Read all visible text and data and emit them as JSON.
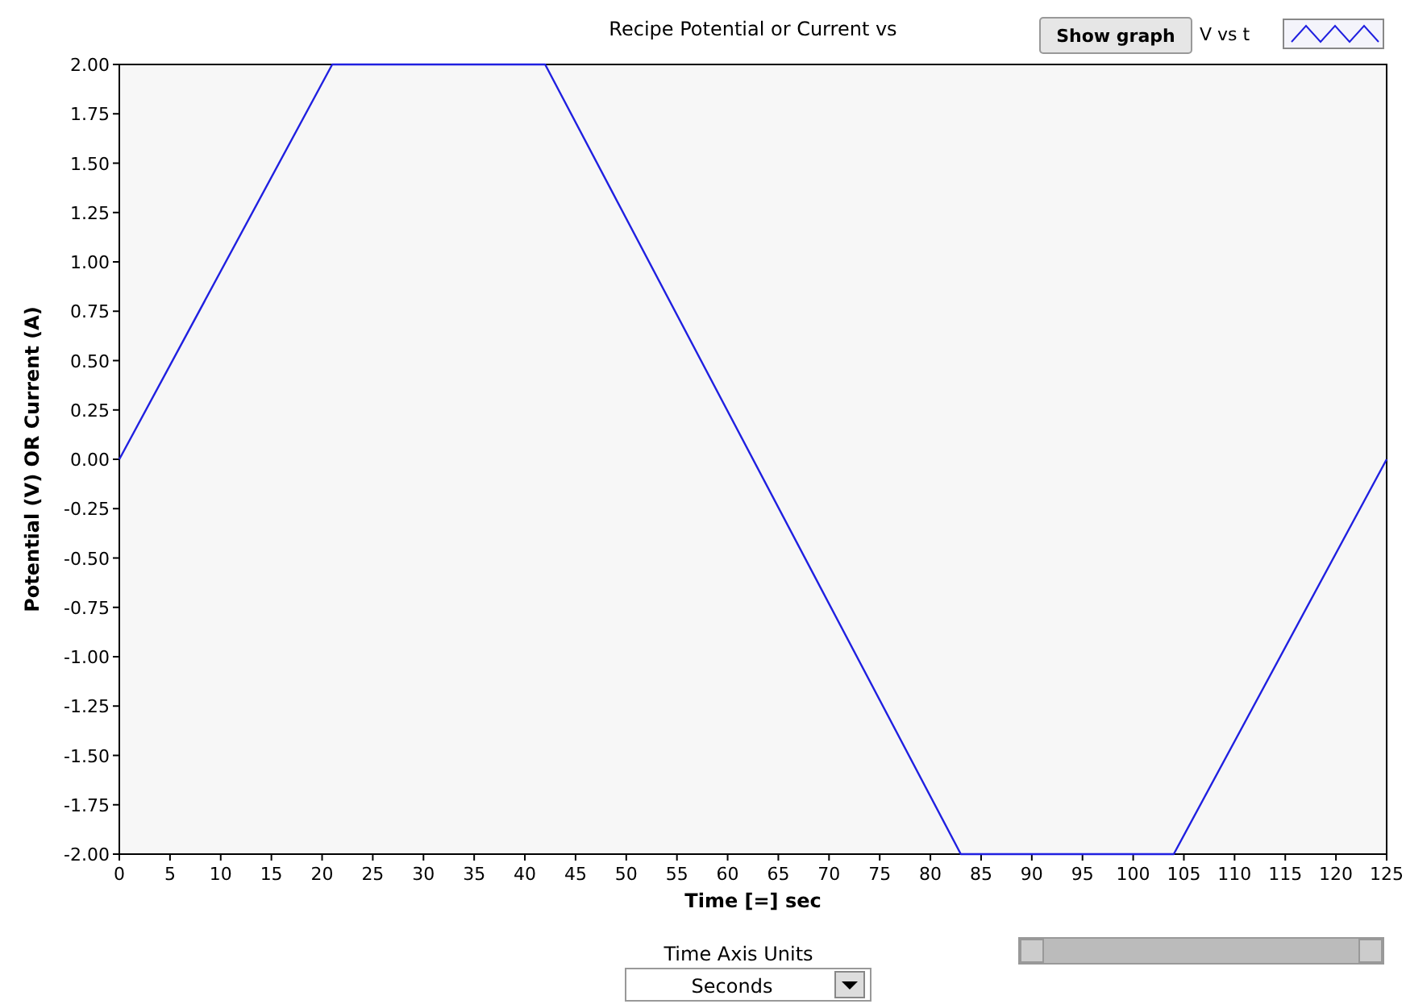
{
  "chart_data": {
    "type": "line",
    "title": "Recipe Potential or Current vs",
    "xlabel": "Time [=] sec",
    "ylabel": "Potential (V) OR Current (A)",
    "x": [
      0,
      21,
      42,
      83,
      104,
      125
    ],
    "series": [
      {
        "name": "V vs t",
        "color": "#2020e0",
        "values": [
          0,
          2,
          2,
          -2,
          -2,
          0
        ]
      }
    ],
    "xlim": [
      0,
      125
    ],
    "xticks": [
      0,
      5,
      10,
      15,
      20,
      25,
      30,
      35,
      40,
      45,
      50,
      55,
      60,
      65,
      70,
      75,
      80,
      85,
      90,
      95,
      100,
      105,
      110,
      115,
      120,
      125
    ],
    "ylim": [
      -2,
      2
    ],
    "yticks": [
      {
        "value": -2,
        "label": "-2.00"
      },
      {
        "value": -1.75,
        "label": "-1.75"
      },
      {
        "value": -1.5,
        "label": "-1.50"
      },
      {
        "value": -1.25,
        "label": "-1.25"
      },
      {
        "value": -1,
        "label": "-1.00"
      },
      {
        "value": -0.75,
        "label": "-0.75"
      },
      {
        "value": -0.5,
        "label": "-0.50"
      },
      {
        "value": -0.25,
        "label": "-0.25"
      },
      {
        "value": 0,
        "label": "0.00"
      },
      {
        "value": 0.25,
        "label": "0.25"
      },
      {
        "value": 0.5,
        "label": "0.50"
      },
      {
        "value": 0.75,
        "label": "0.75"
      },
      {
        "value": 1,
        "label": "1.00"
      },
      {
        "value": 1.25,
        "label": "1.25"
      },
      {
        "value": 1.5,
        "label": "1.50"
      },
      {
        "value": 1.75,
        "label": "1.75"
      },
      {
        "value": 2,
        "label": "2.00"
      }
    ],
    "grid": false,
    "legend": "top right",
    "marker": "none",
    "line_style": "solid",
    "annotations": [
      "Show graph",
      "Time Axis Units",
      "Seconds"
    ]
  }
}
